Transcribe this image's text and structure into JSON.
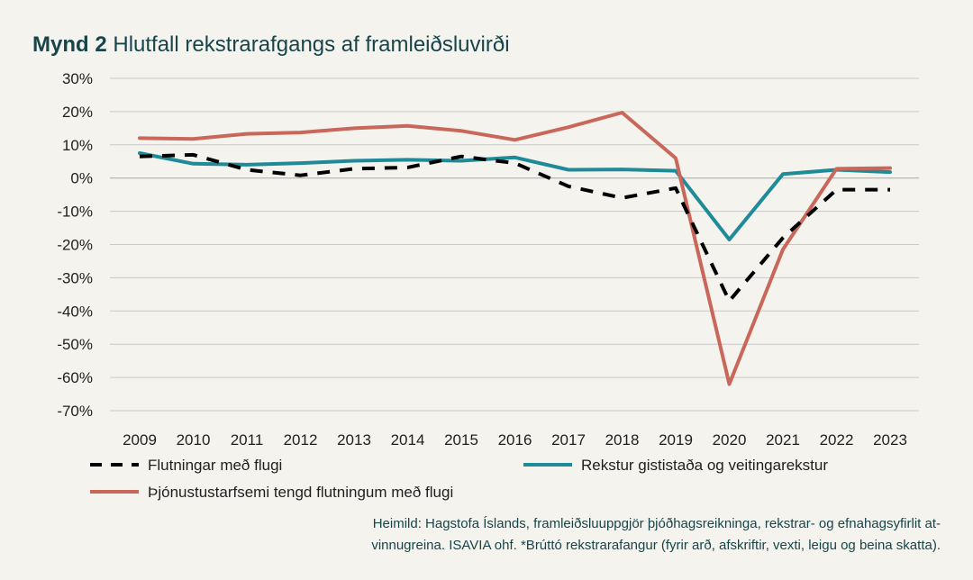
{
  "header": {
    "figure_number": "Mynd 2",
    "title": "Hlutfall rekstrarafgangs af framleiðsluvirði"
  },
  "chart_data": {
    "type": "line",
    "title": "Hlutfall rekstrarafgangs af framleiðsluvirði",
    "xlabel": "",
    "ylabel": "",
    "ylim": [
      -70,
      30
    ],
    "yticks": [
      30,
      20,
      10,
      0,
      -10,
      -20,
      -30,
      -40,
      -50,
      -60,
      -70
    ],
    "ytick_labels": [
      "30%",
      "20%",
      "10%",
      "0%",
      "-10%",
      "-20%",
      "-30%",
      "-40%",
      "-50%",
      "-60%",
      "-70%"
    ],
    "grid": true,
    "categories": [
      "2009",
      "2010",
      "2011",
      "2012",
      "2013",
      "2014",
      "2015",
      "2016",
      "2017",
      "2018",
      "2019",
      "2020",
      "2021",
      "2022",
      "2023"
    ],
    "series": [
      {
        "name": "Flutningar með flugi",
        "color": "#000000",
        "style": "dashed",
        "values": [
          6.5,
          7,
          2.5,
          0.8,
          2.8,
          3.2,
          6.5,
          4.5,
          -2.5,
          -6,
          -3,
          -37,
          -18,
          -3.5,
          -3.5
        ]
      },
      {
        "name": "Rekstur gististaða og veitingarekstur",
        "color": "#1f8a98",
        "style": "solid",
        "values": [
          7.5,
          4.3,
          4,
          4.5,
          5.2,
          5.5,
          5.2,
          6.2,
          2.5,
          2.6,
          2.2,
          -18.5,
          1.2,
          2.5,
          1.8
        ]
      },
      {
        "name": "Þjónustustarfsemi tengd flutningum með flugi",
        "color": "#c8675a",
        "style": "solid",
        "values": [
          12,
          11.8,
          13.3,
          13.7,
          15,
          15.7,
          14.2,
          11.5,
          15.3,
          19.7,
          6,
          -62,
          -21.5,
          2.8,
          3
        ]
      }
    ],
    "legend_position": "bottom"
  },
  "source": {
    "line1": "Heimild: Hagstofa Íslands, framleiðsluuppgjör þjóðhagsreikninga, rekstrar- og efnahagsyfirlit at-",
    "line2": "vinnugreina. ISAVIA ohf. *Brúttó rekstrarafangur (fyrir arð, afskriftir, vexti, leigu og beina skatta)."
  }
}
